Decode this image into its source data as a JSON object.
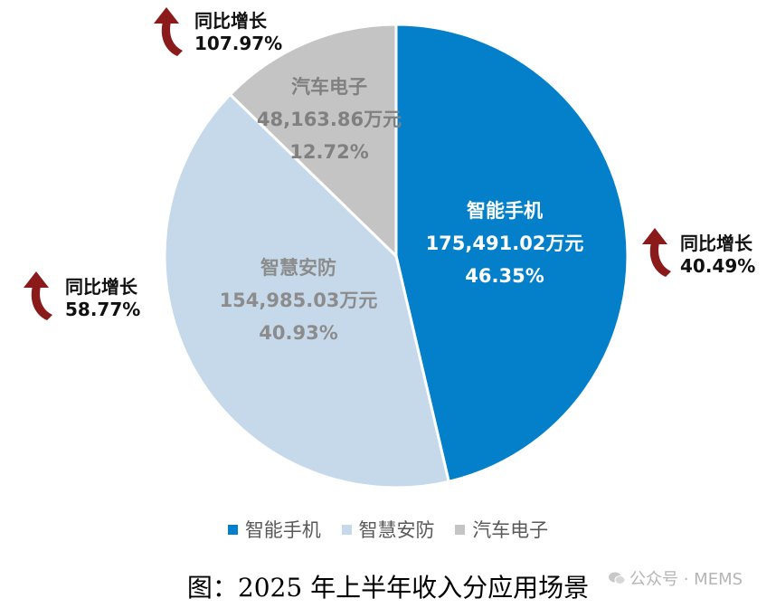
{
  "chart_data": {
    "type": "pie",
    "start_angle_deg": 0,
    "direction": "clockwise",
    "slices": [
      {
        "name": "智能手机",
        "value_text": "175,491.02万元",
        "value": 175491.02,
        "percent_text": "46.35%",
        "percent": 46.35,
        "color": "#0480CA",
        "text_color": "#ffffff",
        "growth_label": "同比增长",
        "growth_value": "40.49%"
      },
      {
        "name": "智慧安防",
        "value_text": "154,985.03万元",
        "value": 154985.03,
        "percent_text": "40.93%",
        "percent": 40.93,
        "color": "#C6D9EA",
        "text_color": "#8C8C8C",
        "growth_label": "同比增长",
        "growth_value": "58.77%"
      },
      {
        "name": "汽车电子",
        "value_text": "48,163.86万元",
        "value": 48163.86,
        "percent_text": "12.72%",
        "percent": 12.72,
        "color": "#C4C4C4",
        "text_color": "#808080",
        "growth_label": "同比增长",
        "growth_value": "107.97%"
      }
    ],
    "legend_position": "bottom",
    "growth_arrow_color": "#8B1A1A"
  },
  "caption": "图：2025 年上半年收入分应用场景",
  "watermark": "公众号 · MEMS"
}
